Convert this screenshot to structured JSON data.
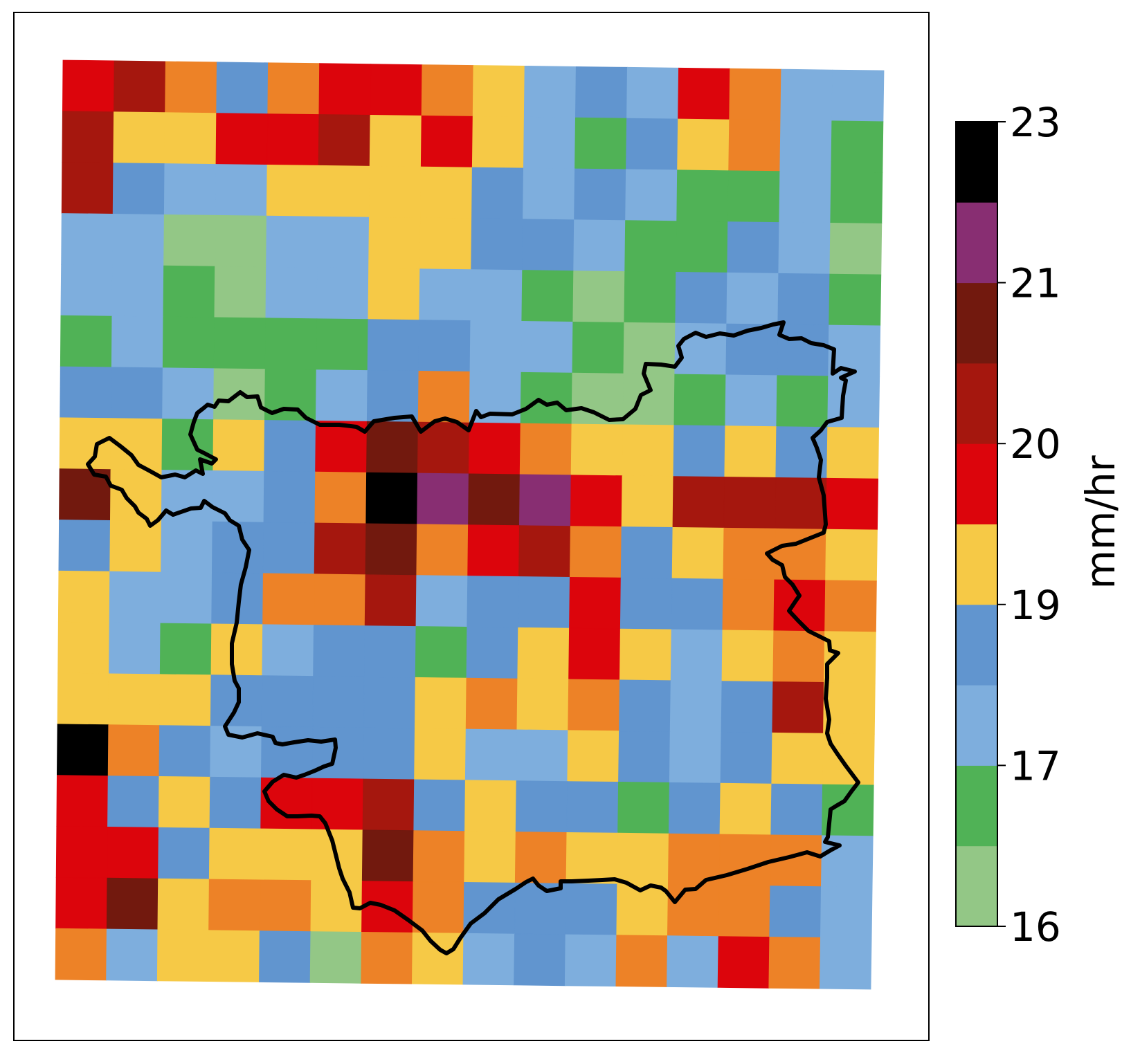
{
  "map": {
    "colorbar_unit": "mm/hr",
    "colorbar_ticks": [
      "23",
      "21",
      "20",
      "19",
      "17",
      "16"
    ],
    "palette": {
      "L": "#93c786",
      "G": "#50b256",
      "S": "#7eaedd",
      "B": "#6195cf",
      "Y": "#f6c946",
      "O": "#ed8227",
      "R": "#dc050c",
      "D": "#a5170e",
      "M": "#72190e",
      "P": "#882e72",
      "K": "#000000"
    },
    "colorbar_classes": [
      "L",
      "G",
      "S",
      "B",
      "Y",
      "R",
      "D",
      "M",
      "P",
      "K"
    ],
    "grid_rows": [
      "RDOBORROYSBSROSS",
      "DYYRRDYRYSGBYOSG",
      "DBSSYYYYBSBSGGSG",
      "SSLLSSYYBBSGGBSL",
      "SSGLSSYSSGLGBSBG",
      "GSGGGGBBSSGLSBBS",
      "BBSLGSBOSGLLGSGS",
      "YYGYBRMDROYYBYBY",
      "MYSSBOKPMPRYDDDR",
      "BYSBBDMORDOBYOOY",
      "YSSBOODSBBRBBORO",
      "YSGYSBBGBYRYSYOY",
      "YYYBBBBYOYOBSBDY",
      "KOBSBBBYSSYBSBYY",
      "RBYBRRDBYBBGBYBG",
      "RRBYYYMOYOYYOOOS",
      "RMYOOYROBBBYOOBS",
      "OSYYBLOYSBSOSROS"
    ]
  }
}
